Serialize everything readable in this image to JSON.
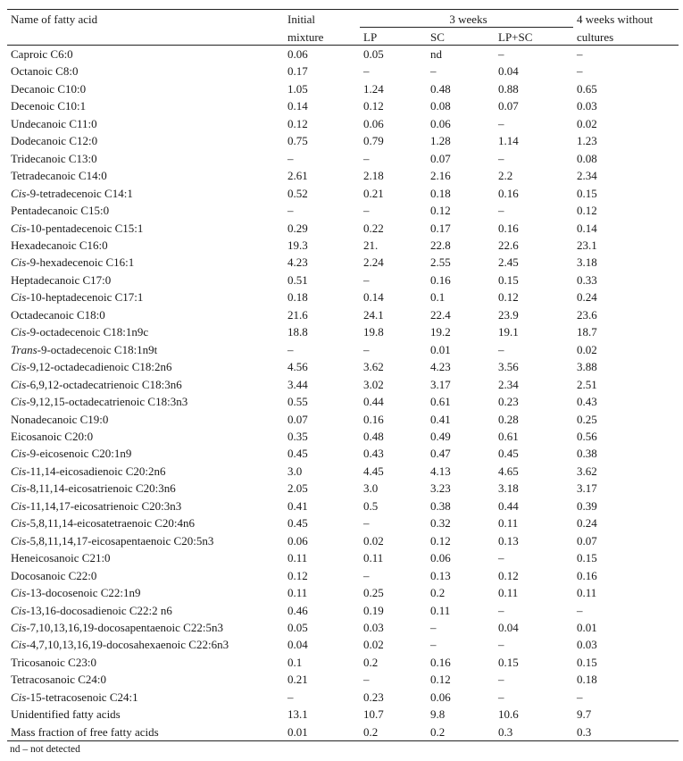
{
  "header": {
    "name": "Name of fatty acid",
    "initial_line1": "Initial",
    "initial_line2": "mixture",
    "group": "3 weeks",
    "lp": "LP",
    "sc": "SC",
    "lpsc": "LP+SC",
    "four_line1": "4 weeks without",
    "four_line2": "cultures"
  },
  "rows": [
    {
      "i": "",
      "n": "Caproic C6:0",
      "v": [
        "0.06",
        "0.05",
        "nd",
        "–",
        "–"
      ]
    },
    {
      "i": "",
      "n": "Octanoic C8:0",
      "v": [
        "0.17",
        "–",
        "–",
        "0.04",
        "–"
      ]
    },
    {
      "i": "",
      "n": "Decanoic C10:0",
      "v": [
        "1.05",
        "1.24",
        "0.48",
        "0.88",
        "0.65"
      ]
    },
    {
      "i": "",
      "n": "Decenoic C10:1",
      "v": [
        "0.14",
        "0.12",
        "0.08",
        "0.07",
        "0.03"
      ]
    },
    {
      "i": "",
      "n": "Undecanoic C11:0",
      "v": [
        "0.12",
        "0.06",
        "0.06",
        "–",
        "0.02"
      ]
    },
    {
      "i": "",
      "n": "Dodecanoic C12:0",
      "v": [
        "0.75",
        "0.79",
        "1.28",
        "1.14",
        "1.23"
      ]
    },
    {
      "i": "",
      "n": "Tridecanoic C13:0",
      "v": [
        "–",
        "–",
        "0.07",
        "–",
        "0.08"
      ]
    },
    {
      "i": "",
      "n": "Tetradecanoic C14:0",
      "v": [
        "2.61",
        "2.18",
        "2.16",
        "2.2",
        "2.34"
      ]
    },
    {
      "i": "Cis",
      "n": "-9-tetradecenoic C14:1",
      "v": [
        "0.52",
        "0.21",
        "0.18",
        "0.16",
        "0.15"
      ]
    },
    {
      "i": "",
      "n": "Pentadecanoic C15:0",
      "v": [
        "–",
        "–",
        "0.12",
        "–",
        "0.12"
      ]
    },
    {
      "i": "Cis",
      "n": "-10-pentadecenoic C15:1",
      "v": [
        "0.29",
        "0.22",
        "0.17",
        "0.16",
        "0.14"
      ]
    },
    {
      "i": "",
      "n": "Hexadecanoic C16:0",
      "v": [
        "19.3",
        "21.",
        "22.8",
        "22.6",
        "23.1"
      ]
    },
    {
      "i": "Cis",
      "n": "-9-hexadecenoic C16:1",
      "v": [
        "4.23",
        "2.24",
        "2.55",
        "2.45",
        "3.18"
      ]
    },
    {
      "i": "",
      "n": "Heptadecanoic C17:0",
      "v": [
        "0.51",
        "–",
        "0.16",
        "0.15",
        "0.33"
      ]
    },
    {
      "i": "Cis",
      "n": "-10-heptadecenoic C17:1",
      "v": [
        "0.18",
        "0.14",
        "0.1",
        "0.12",
        "0.24"
      ]
    },
    {
      "i": "",
      "n": "Octadecanoic C18:0",
      "v": [
        "21.6",
        "24.1",
        "22.4",
        "23.9",
        "23.6"
      ]
    },
    {
      "i": "Cis",
      "n": "-9-octadecenoic C18:1n9c",
      "v": [
        "18.8",
        "19.8",
        "19.2",
        "19.1",
        "18.7"
      ]
    },
    {
      "i": "Trans",
      "n": "-9-octadecenoic C18:1n9t",
      "v": [
        "–",
        "–",
        "0.01",
        "–",
        "0.02"
      ]
    },
    {
      "i": "Cis",
      "n": "-9,12-octadecadienoic C18:2n6",
      "v": [
        "4.56",
        "3.62",
        "4.23",
        "3.56",
        "3.88"
      ]
    },
    {
      "i": "Cis",
      "n": "-6,9,12-octadecatrienoic C18:3n6",
      "v": [
        "3.44",
        "3.02",
        "3.17",
        "2.34",
        "2.51"
      ]
    },
    {
      "i": "Cis",
      "n": "-9,12,15-octadecatrienoic C18:3n3",
      "v": [
        "0.55",
        "0.44",
        "0.61",
        "0.23",
        "0.43"
      ]
    },
    {
      "i": "",
      "n": "Nonadecanoic C19:0",
      "v": [
        "0.07",
        "0.16",
        "0.41",
        "0.28",
        "0.25"
      ]
    },
    {
      "i": "",
      "n": "Eicosanoic C20:0",
      "v": [
        "0.35",
        "0.48",
        "0.49",
        "0.61",
        "0.56"
      ]
    },
    {
      "i": "Cis",
      "n": "-9-eicosenoic C20:1n9",
      "v": [
        "0.45",
        "0.43",
        "0.47",
        "0.45",
        "0.38"
      ]
    },
    {
      "i": "Cis",
      "n": "-11,14-eicosadienoic C20:2n6",
      "v": [
        "3.0",
        "4.45",
        "4.13",
        "4.65",
        "3.62"
      ]
    },
    {
      "i": "Cis",
      "n": "-8,11,14-eicosatrienoic C20:3n6",
      "v": [
        "2.05",
        "3.0",
        "3.23",
        "3.18",
        "3.17"
      ]
    },
    {
      "i": "Cis",
      "n": "-11,14,17-eicosatrienoic C20:3n3",
      "v": [
        "0.41",
        "0.5",
        "0.38",
        "0.44",
        "0.39"
      ]
    },
    {
      "i": "Cis",
      "n": "-5,8,11,14-eicosatetraenoic C20:4n6",
      "v": [
        "0.45",
        "–",
        "0.32",
        "0.11",
        "0.24"
      ]
    },
    {
      "i": "Cis",
      "n": "-5,8,11,14,17-eicosapentaenoic C20:5n3",
      "v": [
        "0.06",
        "0.02",
        "0.12",
        "0.13",
        "0.07"
      ]
    },
    {
      "i": "",
      "n": "Heneicosanoic C21:0",
      "v": [
        "0.11",
        "0.11",
        "0.06",
        "–",
        "0.15"
      ]
    },
    {
      "i": "",
      "n": "Docosanoic C22:0",
      "v": [
        "0.12",
        "–",
        "0.13",
        "0.12",
        "0.16"
      ]
    },
    {
      "i": "Cis",
      "n": "-13-docosenoic C22:1n9",
      "v": [
        "0.11",
        "0.25",
        "0.2",
        "0.11",
        "0.11"
      ]
    },
    {
      "i": "Cis",
      "n": "-13,16-docosadienoic C22:2 n6",
      "v": [
        "0.46",
        "0.19",
        "0.11",
        "–",
        "–"
      ]
    },
    {
      "i": "Cis",
      "n": "-7,10,13,16,19-docosapentaenoic C22:5n3",
      "v": [
        "0.05",
        "0.03",
        "–",
        "0.04",
        "0.01"
      ]
    },
    {
      "i": "Cis",
      "n": "-4,7,10,13,16,19-docosahexaenoic C22:6n3",
      "v": [
        "0.04",
        "0.02",
        "–",
        "–",
        "0.03"
      ]
    },
    {
      "i": "",
      "n": "Tricosanoic C23:0",
      "v": [
        "0.1",
        "0.2",
        "0.16",
        "0.15",
        "0.15"
      ]
    },
    {
      "i": "",
      "n": "Tetracosanoic C24:0",
      "v": [
        "0.21",
        "–",
        "0.12",
        "–",
        "0.18"
      ]
    },
    {
      "i": "Cis",
      "n": "-15-tetracosenoic C24:1",
      "v": [
        "–",
        "0.23",
        "0.06",
        "–",
        "–"
      ]
    },
    {
      "i": "",
      "n": "Unidentified fatty acids",
      "v": [
        "13.1",
        "10.7",
        "9.8",
        "10.6",
        "9.7"
      ]
    },
    {
      "i": "",
      "n": "Mass fraction of free fatty acids",
      "v": [
        "0.01",
        "0.2",
        "0.2",
        "0.3",
        "0.3"
      ]
    }
  ],
  "footnote": "nd – not detected"
}
